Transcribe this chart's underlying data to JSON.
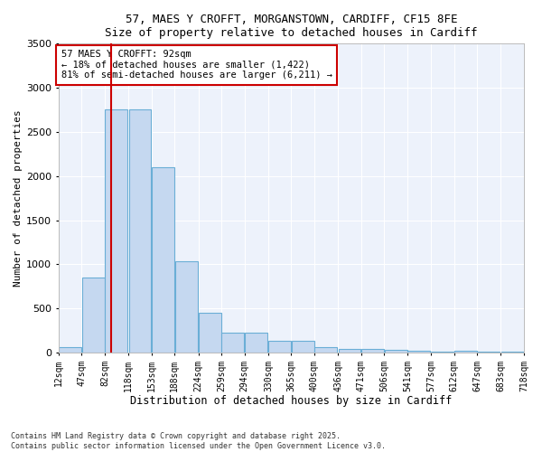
{
  "title_line1": "57, MAES Y CROFFT, MORGANSTOWN, CARDIFF, CF15 8FE",
  "title_line2": "Size of property relative to detached houses in Cardiff",
  "xlabel": "Distribution of detached houses by size in Cardiff",
  "ylabel": "Number of detached properties",
  "bar_color": "#c5d8f0",
  "bar_edge_color": "#6aaed6",
  "background_color": "#edf2fb",
  "grid_color": "#ffffff",
  "annotation_box_color": "#cc0000",
  "vline_color": "#cc0000",
  "footer_line1": "Contains HM Land Registry data © Crown copyright and database right 2025.",
  "footer_line2": "Contains public sector information licensed under the Open Government Licence v3.0.",
  "annotation_title": "57 MAES Y CROFFT: 92sqm",
  "annotation_line1": "← 18% of detached houses are smaller (1,422)",
  "annotation_line2": "81% of semi-detached houses are larger (6,211) →",
  "property_size_sqm": 92,
  "bin_edges": [
    12,
    47,
    82,
    118,
    153,
    188,
    224,
    259,
    294,
    330,
    365,
    400,
    436,
    471,
    506,
    541,
    577,
    612,
    647,
    683,
    718
  ],
  "bin_labels": [
    "12sqm",
    "47sqm",
    "82sqm",
    "118sqm",
    "153sqm",
    "188sqm",
    "224sqm",
    "259sqm",
    "294sqm",
    "330sqm",
    "365sqm",
    "400sqm",
    "436sqm",
    "471sqm",
    "506sqm",
    "541sqm",
    "577sqm",
    "612sqm",
    "647sqm",
    "683sqm",
    "718sqm"
  ],
  "counts": [
    60,
    850,
    2760,
    2760,
    2100,
    1030,
    450,
    220,
    220,
    130,
    130,
    60,
    45,
    45,
    30,
    25,
    10,
    15,
    5,
    5
  ],
  "ylim": [
    0,
    3500
  ],
  "yticks": [
    0,
    500,
    1000,
    1500,
    2000,
    2500,
    3000,
    3500
  ],
  "figsize": [
    6.0,
    5.0
  ],
  "dpi": 100
}
